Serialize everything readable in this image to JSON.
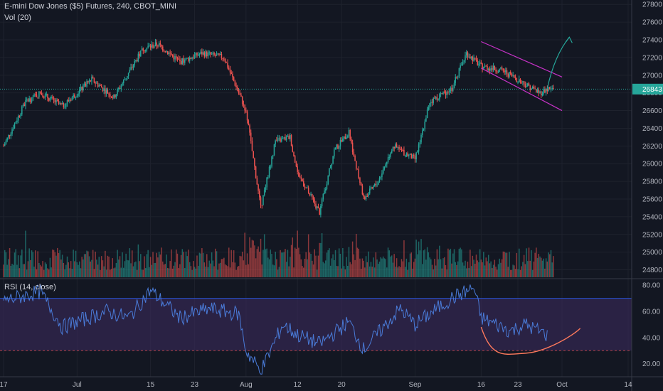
{
  "header": {
    "title": "E-mini Dow Jones ($5) Futures, 240, CBOT_MINI",
    "volume_label": "Vol (20)",
    "rsi_label": "RSI (14, close)"
  },
  "colors": {
    "background": "#131722",
    "grid": "#1e222d",
    "up": "#26a69a",
    "down": "#ef5350",
    "rsi_line": "#2962ff",
    "rsi_band_fill": "#3a2a5c",
    "rsi_band_lines": "#2962ff",
    "channel": "#c832c8",
    "projection_arrow": "#26a69a",
    "rounding_curve": "#ff7a5c",
    "price_tag": "#26a69a"
  },
  "chart_data": [
    {
      "type": "candlestick",
      "title": "E-mini Dow Jones ($5) Futures, 240, CBOT_MINI",
      "x_tick_labels": [
        "17",
        "Jul",
        "15",
        "23",
        "Aug",
        "12",
        "20",
        "Sep",
        "16",
        "23",
        "Oct",
        "14"
      ],
      "y_tick_labels": [
        27800,
        27600,
        27400,
        27200,
        27000,
        26800,
        26600,
        26400,
        26200,
        26000,
        25800,
        25600,
        25400,
        25200,
        25000,
        24800
      ],
      "y_range": [
        24700,
        27850
      ],
      "last_price": 26843,
      "price_path_keypoints": [
        {
          "x": "Jun 17",
          "price": 26200
        },
        {
          "x": "Jun 20",
          "price": 26700
        },
        {
          "x": "Jun 24",
          "price": 26800
        },
        {
          "x": "Jun 27",
          "price": 26650
        },
        {
          "x": "Jul 3",
          "price": 26950
        },
        {
          "x": "Jul 8",
          "price": 26750
        },
        {
          "x": "Jul 12",
          "price": 27300
        },
        {
          "x": "Jul 16",
          "price": 27350
        },
        {
          "x": "Jul 19",
          "price": 27150
        },
        {
          "x": "Jul 24",
          "price": 27250
        },
        {
          "x": "Jul 29",
          "price": 27200
        },
        {
          "x": "Aug 1",
          "price": 26600
        },
        {
          "x": "Aug 5",
          "price": 25500
        },
        {
          "x": "Aug 7",
          "price": 26250
        },
        {
          "x": "Aug 9",
          "price": 26300
        },
        {
          "x": "Aug 12",
          "price": 25900
        },
        {
          "x": "Aug 15",
          "price": 25450
        },
        {
          "x": "Aug 19",
          "price": 26150
        },
        {
          "x": "Aug 21",
          "price": 26350
        },
        {
          "x": "Aug 23",
          "price": 25600
        },
        {
          "x": "Aug 27",
          "price": 25800
        },
        {
          "x": "Aug 29",
          "price": 26200
        },
        {
          "x": "Sep 3",
          "price": 26050
        },
        {
          "x": "Sep 5",
          "price": 26700
        },
        {
          "x": "Sep 10",
          "price": 26850
        },
        {
          "x": "Sep 12",
          "price": 27250
        },
        {
          "x": "Sep 16",
          "price": 27100
        },
        {
          "x": "Sep 19",
          "price": 27050
        },
        {
          "x": "Sep 23",
          "price": 26950
        },
        {
          "x": "Sep 26",
          "price": 26800
        },
        {
          "x": "Sep 27",
          "price": 26843
        }
      ],
      "annotations": [
        {
          "type": "descending-channel",
          "upper": [
            {
              "x": "Sep 16",
              "price": 27380
            },
            {
              "x": "Oct 1",
              "price": 26980
            }
          ],
          "lower": [
            {
              "x": "Sep 16",
              "price": 27080
            },
            {
              "x": "Oct 1",
              "price": 26600
            }
          ]
        },
        {
          "type": "projection-arrow",
          "from": {
            "x": "Sep 27",
            "price": 26850
          },
          "to": {
            "x": "Oct 2",
            "price": 27430
          }
        }
      ]
    },
    {
      "type": "bar",
      "title": "Vol (20)",
      "note": "volume histogram colored by candle direction"
    },
    {
      "type": "line",
      "title": "RSI (14, close)",
      "y_tick_labels": [
        80.0,
        60.0,
        40.0,
        20.0
      ],
      "y_range": [
        10,
        85
      ],
      "bands": {
        "upper": 70,
        "lower": 30
      },
      "rsi_keypoints": [
        {
          "x": "Jun 17",
          "rsi": 68
        },
        {
          "x": "Jun 22",
          "rsi": 75
        },
        {
          "x": "Jun 27",
          "rsi": 48
        },
        {
          "x": "Jul 5",
          "rsi": 60
        },
        {
          "x": "Jul 10",
          "rsi": 55
        },
        {
          "x": "Jul 15",
          "rsi": 76
        },
        {
          "x": "Jul 19",
          "rsi": 55
        },
        {
          "x": "Jul 25",
          "rsi": 62
        },
        {
          "x": "Jul 31",
          "rsi": 58
        },
        {
          "x": "Aug 1",
          "rsi": 30
        },
        {
          "x": "Aug 5",
          "rsi": 14
        },
        {
          "x": "Aug 8",
          "rsi": 50
        },
        {
          "x": "Aug 12",
          "rsi": 42
        },
        {
          "x": "Aug 15",
          "rsi": 35
        },
        {
          "x": "Aug 21",
          "rsi": 52
        },
        {
          "x": "Aug 23",
          "rsi": 31
        },
        {
          "x": "Aug 30",
          "rsi": 62
        },
        {
          "x": "Sep 3",
          "rsi": 50
        },
        {
          "x": "Sep 10",
          "rsi": 70
        },
        {
          "x": "Sep 13",
          "rsi": 78
        },
        {
          "x": "Sep 16",
          "rsi": 55
        },
        {
          "x": "Sep 20",
          "rsi": 45
        },
        {
          "x": "Sep 24",
          "rsi": 50
        },
        {
          "x": "Sep 27",
          "rsi": 42
        }
      ],
      "annotations": [
        {
          "type": "rounding-bottom-curve",
          "from": {
            "x": "Sep 16",
            "rsi": 48
          },
          "bottom": {
            "x": "Sep 24",
            "rsi": 28
          },
          "to": {
            "x": "Oct 3",
            "rsi": 47
          }
        }
      ]
    }
  ],
  "axes": {
    "price_tag_label": "26843"
  }
}
